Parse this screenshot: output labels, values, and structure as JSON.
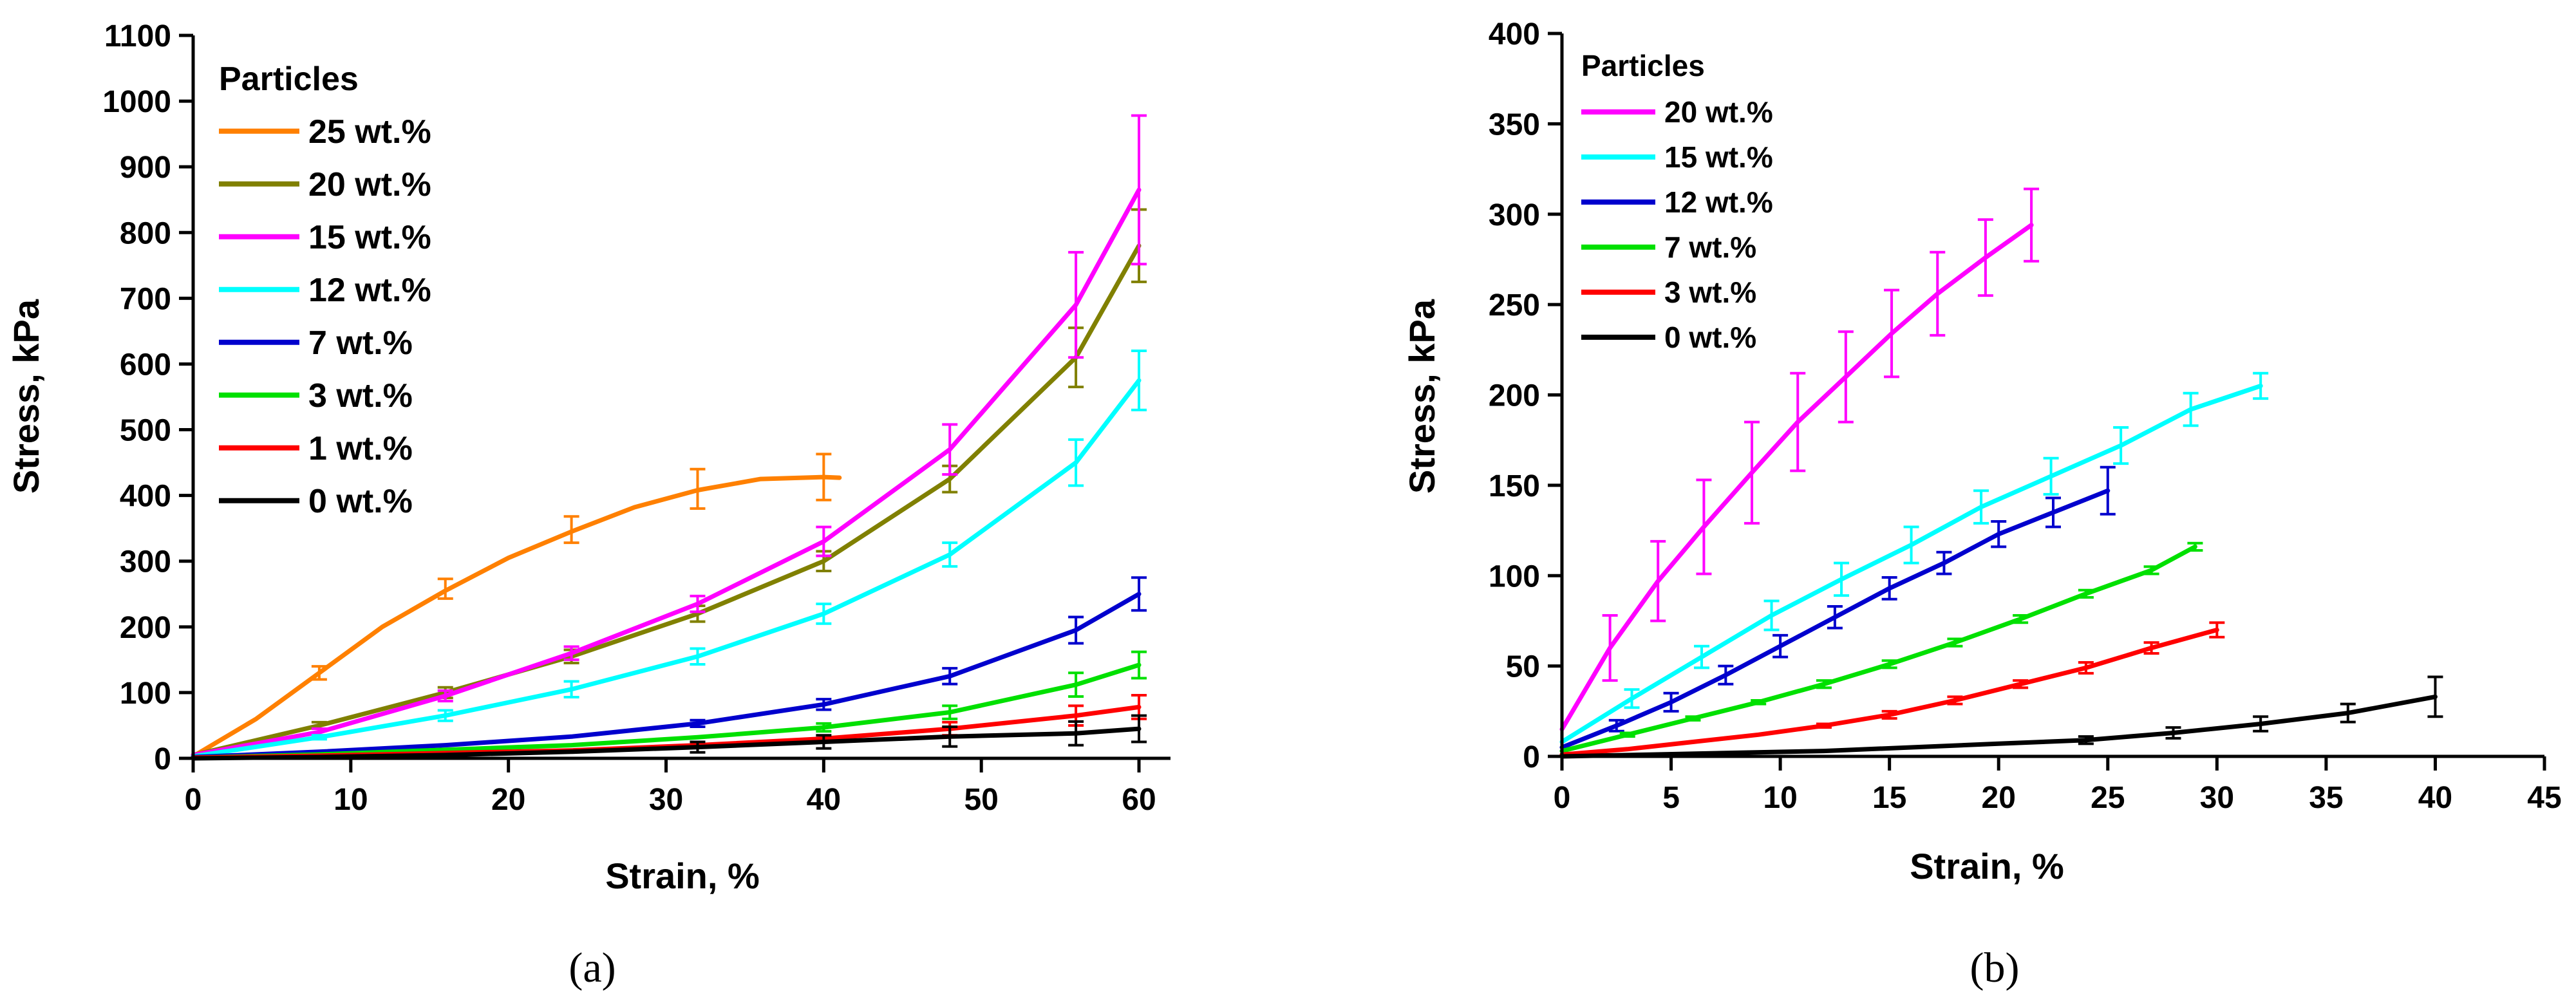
{
  "chart_data": [
    {
      "type": "line",
      "panel_label": "(a)",
      "xlabel": "Strain, %",
      "ylabel": "Stress, kPa",
      "xlim": [
        0,
        62
      ],
      "ylim": [
        0,
        1100
      ],
      "xticks": [
        0,
        10,
        20,
        30,
        40,
        50,
        60
      ],
      "yticks": [
        0,
        100,
        200,
        300,
        400,
        500,
        600,
        700,
        800,
        900,
        1000,
        1100
      ],
      "grid": false,
      "legend_title": "Particles",
      "legend_position": "top-left",
      "series": [
        {
          "name": "25 wt.%",
          "color": "#ff8000",
          "x": [
            0,
            4,
            8,
            12,
            16,
            20,
            24,
            28,
            32,
            36,
            40,
            41
          ],
          "y": [
            3,
            60,
            130,
            200,
            255,
            305,
            345,
            382,
            408,
            425,
            428,
            427
          ],
          "error_x": [
            8,
            16,
            24,
            32,
            40
          ],
          "error_y": [
            130,
            258,
            348,
            410,
            428
          ],
          "error_pm": [
            10,
            15,
            20,
            30,
            35
          ]
        },
        {
          "name": "20 wt.%",
          "color": "#808000",
          "x": [
            0,
            8,
            16,
            24,
            32,
            40,
            48,
            56,
            60
          ],
          "y": [
            5,
            50,
            100,
            155,
            220,
            300,
            425,
            610,
            780
          ],
          "error_x": [
            8,
            16,
            24,
            32,
            40,
            48,
            56,
            60
          ],
          "error_y": [
            50,
            100,
            155,
            220,
            300,
            425,
            610,
            780
          ],
          "error_pm": [
            5,
            8,
            10,
            12,
            15,
            20,
            45,
            55
          ]
        },
        {
          "name": "15 wt.%",
          "color": "#ff00ff",
          "x": [
            0,
            8,
            16,
            24,
            32,
            40,
            48,
            56,
            60
          ],
          "y": [
            5,
            40,
            95,
            160,
            235,
            330,
            470,
            690,
            865
          ],
          "error_x": [
            8,
            16,
            24,
            32,
            40,
            48,
            56,
            60
          ],
          "error_y": [
            40,
            95,
            160,
            235,
            330,
            470,
            690,
            865
          ],
          "error_pm": [
            5,
            8,
            10,
            12,
            22,
            38,
            80,
            113
          ]
        },
        {
          "name": "12 wt.%",
          "color": "#00ffff",
          "x": [
            0,
            8,
            16,
            24,
            32,
            40,
            48,
            56,
            60
          ],
          "y": [
            3,
            32,
            65,
            105,
            155,
            220,
            310,
            450,
            575
          ],
          "error_x": [
            8,
            16,
            24,
            32,
            40,
            48,
            56,
            60
          ],
          "error_y": [
            32,
            65,
            105,
            155,
            220,
            310,
            450,
            575
          ],
          "error_pm": [
            3,
            8,
            12,
            12,
            15,
            18,
            35,
            45
          ]
        },
        {
          "name": "7 wt.%",
          "color": "#0000cd",
          "x": [
            0,
            8,
            16,
            24,
            32,
            40,
            48,
            56,
            60
          ],
          "y": [
            2,
            10,
            20,
            33,
            53,
            82,
            125,
            195,
            250
          ],
          "error_x": [
            32,
            40,
            48,
            56,
            60
          ],
          "error_y": [
            53,
            82,
            125,
            195,
            250
          ],
          "error_pm": [
            5,
            8,
            12,
            20,
            25
          ]
        },
        {
          "name": "3 wt.%",
          "color": "#00e000",
          "x": [
            0,
            8,
            16,
            24,
            32,
            40,
            48,
            56,
            60
          ],
          "y": [
            1,
            6,
            13,
            20,
            32,
            47,
            70,
            112,
            142
          ],
          "error_x": [
            40,
            48,
            56,
            60
          ],
          "error_y": [
            47,
            70,
            112,
            142
          ],
          "error_pm": [
            6,
            10,
            18,
            20
          ]
        },
        {
          "name": "1 wt.%",
          "color": "#ff0000",
          "x": [
            0,
            8,
            16,
            24,
            32,
            40,
            48,
            56,
            60
          ],
          "y": [
            1,
            4,
            8,
            12,
            20,
            30,
            45,
            65,
            78
          ],
          "error_x": [
            48,
            56,
            60
          ],
          "error_y": [
            45,
            65,
            78
          ],
          "error_pm": [
            10,
            15,
            18
          ]
        },
        {
          "name": "0 wt.%",
          "color": "#000000",
          "x": [
            0,
            8,
            16,
            24,
            32,
            40,
            48,
            56,
            60
          ],
          "y": [
            0,
            2,
            5,
            10,
            17,
            25,
            33,
            38,
            45
          ],
          "error_x": [
            32,
            40,
            48,
            56,
            60
          ],
          "error_y": [
            17,
            25,
            33,
            38,
            45
          ],
          "error_pm": [
            8,
            10,
            15,
            18,
            20
          ]
        }
      ]
    },
    {
      "type": "line",
      "panel_label": "(b)",
      "xlabel": "Strain, %",
      "ylabel": "Stress, kPa",
      "xlim": [
        0,
        45
      ],
      "ylim": [
        0,
        400
      ],
      "xticks": [
        0,
        5,
        10,
        15,
        20,
        25,
        30,
        35,
        40,
        45
      ],
      "yticks": [
        0,
        50,
        100,
        150,
        200,
        250,
        300,
        350,
        400
      ],
      "grid": false,
      "legend_title": "Particles",
      "legend_position": "top-left",
      "series": [
        {
          "name": "20 wt.%",
          "color": "#ff00ff",
          "x": [
            0,
            2.2,
            4.4,
            6.5,
            8.7,
            10.8,
            13,
            15.1,
            17.2,
            19.4,
            21.5
          ],
          "y": [
            15,
            60,
            97,
            127,
            157,
            185,
            210,
            234,
            256,
            276,
            294
          ],
          "error_x": [
            2.2,
            4.4,
            6.5,
            8.7,
            10.8,
            13,
            15.1,
            17.2,
            19.4,
            21.5
          ],
          "error_y": [
            60,
            97,
            127,
            157,
            185,
            210,
            234,
            256,
            276,
            294
          ],
          "error_pm": [
            18,
            22,
            26,
            28,
            27,
            25,
            24,
            23,
            21,
            20
          ]
        },
        {
          "name": "15 wt.%",
          "color": "#00ffff",
          "x": [
            0,
            3.2,
            6.4,
            9.6,
            12.8,
            16,
            19.2,
            22.4,
            25.6,
            28.8,
            32
          ],
          "y": [
            8,
            32,
            55,
            78,
            98,
            117,
            138,
            155,
            172,
            192,
            205
          ],
          "error_x": [
            3.2,
            6.4,
            9.6,
            12.8,
            16,
            19.2,
            22.4,
            25.6,
            28.8,
            32
          ],
          "error_y": [
            32,
            55,
            78,
            98,
            117,
            138,
            155,
            172,
            192,
            205
          ],
          "error_pm": [
            5,
            6,
            8,
            9,
            10,
            9,
            10,
            10,
            9,
            7
          ]
        },
        {
          "name": "12 wt.%",
          "color": "#0000cd",
          "x": [
            0,
            2.5,
            5,
            7.5,
            10,
            12.5,
            15,
            17.5,
            20,
            22.5,
            25
          ],
          "y": [
            5,
            17,
            30,
            45,
            61,
            77,
            93,
            107,
            123,
            135,
            147
          ],
          "error_x": [
            2.5,
            5,
            7.5,
            10,
            12.5,
            15,
            17.5,
            20,
            22.5,
            25
          ],
          "error_y": [
            17,
            30,
            45,
            61,
            77,
            93,
            107,
            123,
            135,
            147
          ],
          "error_pm": [
            3,
            5,
            5,
            6,
            6,
            6,
            6,
            7,
            8,
            13
          ]
        },
        {
          "name": "7 wt.%",
          "color": "#00e000",
          "x": [
            0,
            3,
            6,
            9,
            12,
            15,
            18,
            21,
            24,
            27,
            29
          ],
          "y": [
            3,
            12,
            21,
            30,
            40,
            51,
            63,
            76,
            90,
            103,
            116
          ],
          "error_x": [
            3,
            6,
            9,
            12,
            15,
            18,
            21,
            24,
            27,
            29
          ],
          "error_y": [
            12,
            21,
            30,
            40,
            51,
            63,
            76,
            90,
            103,
            116
          ],
          "error_pm": [
            1,
            1,
            1,
            2,
            2,
            2,
            2,
            2,
            2,
            2
          ]
        },
        {
          "name": "3 wt.%",
          "color": "#ff0000",
          "x": [
            0,
            3,
            6,
            9,
            12,
            15,
            18,
            21,
            24,
            27,
            30
          ],
          "y": [
            1,
            4,
            8,
            12,
            17,
            23,
            31,
            40,
            49,
            60,
            70
          ],
          "error_x": [
            12,
            15,
            18,
            21,
            24,
            27,
            30
          ],
          "error_y": [
            17,
            23,
            31,
            40,
            49,
            60,
            70
          ],
          "error_pm": [
            1,
            2,
            2,
            2,
            3,
            3,
            4
          ]
        },
        {
          "name": "0 wt.%",
          "color": "#000000",
          "x": [
            0,
            4,
            8,
            12,
            16,
            20,
            24,
            28,
            32,
            36,
            40
          ],
          "y": [
            0,
            1,
            2,
            3,
            5,
            7,
            9,
            13,
            18,
            24,
            33
          ],
          "error_x": [
            24,
            28,
            32,
            36,
            40
          ],
          "error_y": [
            9,
            13,
            18,
            24,
            33
          ],
          "error_pm": [
            2,
            3,
            4,
            5,
            11
          ]
        }
      ]
    }
  ]
}
